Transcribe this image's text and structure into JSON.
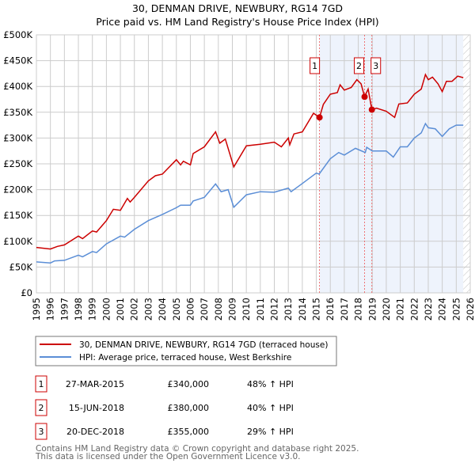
{
  "chart_data": {
    "type": "line",
    "title": "30, DENMAN DRIVE, NEWBURY, RG14 7GD",
    "subtitle": "Price paid vs. HM Land Registry's House Price Index (HPI)",
    "xlim": [
      1995,
      2026
    ],
    "ylim": [
      0,
      500000
    ],
    "grid": true,
    "y_ticks": [
      {
        "v": 0,
        "label": "£0"
      },
      {
        "v": 50000,
        "label": "£50K"
      },
      {
        "v": 100000,
        "label": "£100K"
      },
      {
        "v": 150000,
        "label": "£150K"
      },
      {
        "v": 200000,
        "label": "£200K"
      },
      {
        "v": 250000,
        "label": "£250K"
      },
      {
        "v": 300000,
        "label": "£300K"
      },
      {
        "v": 350000,
        "label": "£350K"
      },
      {
        "v": 400000,
        "label": "£400K"
      },
      {
        "v": 450000,
        "label": "£450K"
      },
      {
        "v": 500000,
        "label": "£500K"
      }
    ],
    "x_ticks": [
      "1995",
      "1996",
      "1997",
      "1998",
      "1999",
      "2000",
      "2001",
      "2002",
      "2003",
      "2004",
      "2005",
      "2006",
      "2007",
      "2008",
      "2009",
      "2010",
      "2011",
      "2012",
      "2013",
      "2014",
      "2015",
      "2016",
      "2017",
      "2018",
      "2019",
      "2020",
      "2021",
      "2022",
      "2023",
      "2024",
      "2025",
      "2026"
    ],
    "shaded_range": [
      2015.23,
      2025.5
    ],
    "hatched_from": 2025.5,
    "series": [
      {
        "name": "30, DENMAN DRIVE, NEWBURY, RG14 7GD (terraced house)",
        "color": "#cc0000",
        "x": [
          1995,
          1996,
          1996.5,
          1997,
          1998,
          1998.3,
          1999,
          1999.3,
          2000,
          2000.5,
          2001,
          2001.5,
          2001.7,
          2002,
          2003,
          2003.5,
          2004,
          2005,
          2005.3,
          2005.5,
          2006,
          2006.2,
          2007,
          2007.8,
          2008.1,
          2008.5,
          2009.1,
          2010,
          2011,
          2012,
          2012.5,
          2013,
          2013.1,
          2013.4,
          2014,
          2014.8,
          2015.23,
          2015.5,
          2016,
          2016.5,
          2016.7,
          2017,
          2017.5,
          2017.9,
          2018.2,
          2018.45,
          2018.7,
          2018.97,
          2019.3,
          2020,
          2020.6,
          2020.9,
          2021.5,
          2022,
          2022.5,
          2022.8,
          2023,
          2023.3,
          2023.7,
          2024,
          2024.3,
          2024.7,
          2025.1,
          2025.5
        ],
        "y": [
          88000,
          85000,
          90000,
          93000,
          110000,
          105000,
          120000,
          118000,
          140000,
          162000,
          160000,
          183000,
          176000,
          185000,
          217000,
          227000,
          230000,
          258000,
          248000,
          255000,
          248000,
          270000,
          283000,
          312000,
          290000,
          298000,
          244000,
          285000,
          288000,
          292000,
          283000,
          300000,
          287000,
          308000,
          312000,
          348000,
          340000,
          365000,
          385000,
          388000,
          403000,
          393000,
          398000,
          413000,
          405000,
          380000,
          395000,
          355000,
          358000,
          352000,
          340000,
          366000,
          368000,
          385000,
          395000,
          423000,
          413000,
          418000,
          405000,
          390000,
          410000,
          410000,
          420000,
          417000
        ]
      },
      {
        "name": "HPI: Average price, terraced house, West Berkshire",
        "color": "#5b8ed6",
        "x": [
          1995,
          1996,
          1996.3,
          1997,
          1998,
          1998.3,
          1999,
          1999.3,
          2000,
          2001,
          2001.3,
          2002,
          2003,
          2004,
          2005,
          2005.3,
          2006,
          2006.2,
          2007,
          2007.8,
          2008.2,
          2008.7,
          2009.1,
          2010,
          2011,
          2012,
          2013,
          2013.2,
          2014,
          2015,
          2015.2,
          2016,
          2016.6,
          2017,
          2017.8,
          2018.5,
          2018.6,
          2019,
          2020,
          2020.5,
          2021,
          2021.5,
          2022,
          2022.5,
          2022.8,
          2023,
          2023.5,
          2024,
          2024.5,
          2025,
          2025.5
        ],
        "y": [
          60000,
          58000,
          62000,
          63000,
          73000,
          70000,
          80000,
          78000,
          95000,
          110000,
          108000,
          123000,
          140000,
          152000,
          165000,
          170000,
          170000,
          178000,
          185000,
          211000,
          196000,
          200000,
          166000,
          190000,
          196000,
          195000,
          203000,
          196000,
          212000,
          232000,
          230000,
          260000,
          272000,
          267000,
          280000,
          272000,
          282000,
          275000,
          275000,
          263000,
          283000,
          283000,
          300000,
          310000,
          328000,
          320000,
          318000,
          303000,
          318000,
          325000,
          325000
        ]
      }
    ],
    "sales": [
      {
        "id": "1",
        "x": 2015.23,
        "y": 340000,
        "date": "27-MAR-2015",
        "price": "£340,000",
        "hpi": "48% ↑ HPI"
      },
      {
        "id": "2",
        "x": 2018.45,
        "y": 380000,
        "date": "15-JUN-2018",
        "price": "£380,000",
        "hpi": "40% ↑ HPI"
      },
      {
        "id": "3",
        "x": 2018.97,
        "y": 355000,
        "date": "20-DEC-2018",
        "price": "£355,000",
        "hpi": "29% ↑ HPI"
      }
    ]
  },
  "footer": {
    "line1": "Contains HM Land Registry data © Crown copyright and database right 2025.",
    "line2": "This data is licensed under the Open Government Licence v3.0."
  }
}
